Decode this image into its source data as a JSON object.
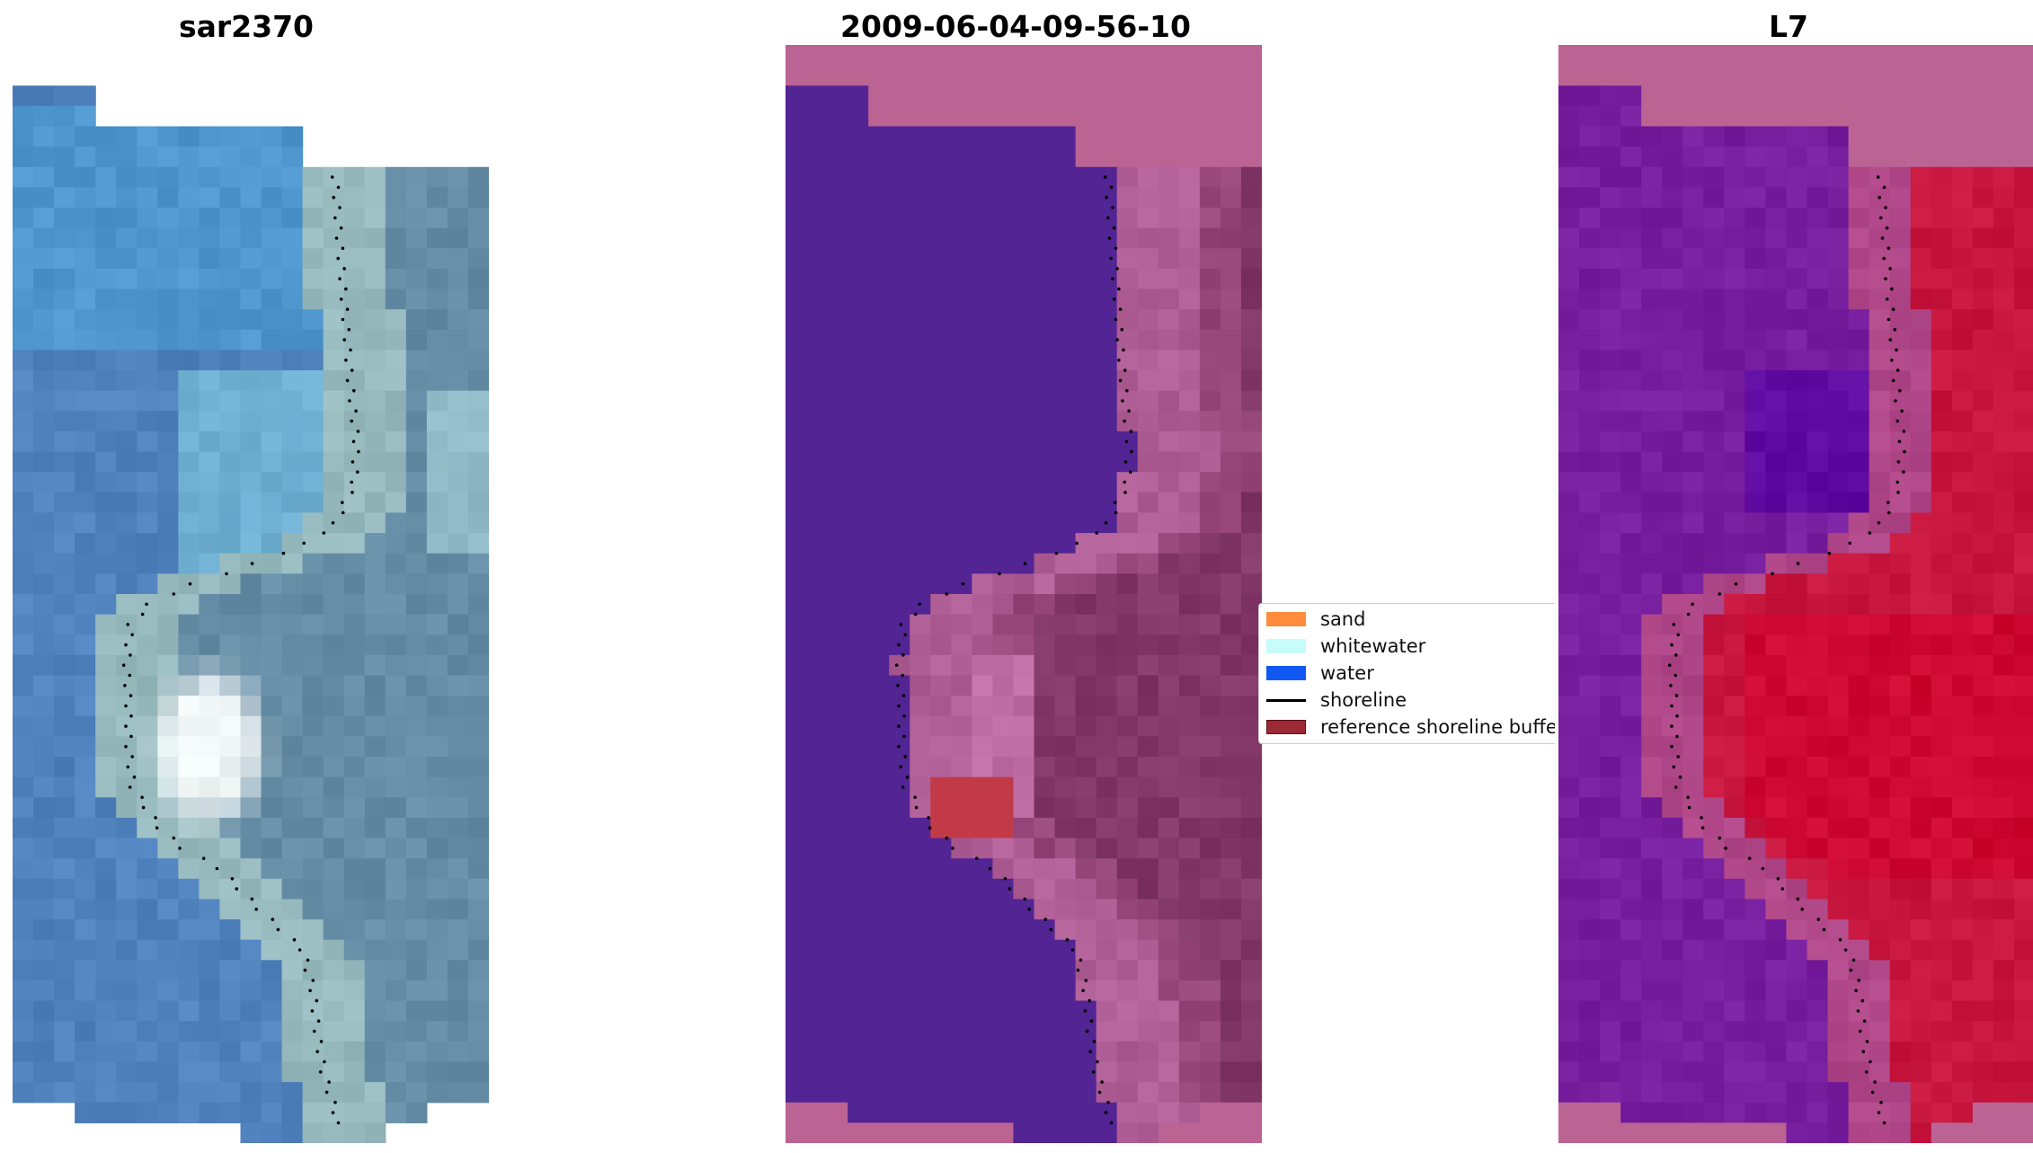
{
  "titles": {
    "left": "sar2370",
    "middle": "2009-06-04-09-56-10",
    "right": "L7"
  },
  "panels": [
    {
      "name": "rgb",
      "style": "rgb"
    },
    {
      "name": "classification",
      "style": "class"
    },
    {
      "name": "mndwi",
      "style": "index"
    }
  ],
  "legend": {
    "items": [
      {
        "label": "sand",
        "color": "#ff8c3c",
        "kind": "patch"
      },
      {
        "label": "whitewater",
        "color": "#c8fcfa",
        "kind": "patch"
      },
      {
        "label": "water",
        "color": "#1158f2",
        "kind": "patch"
      },
      {
        "label": "shoreline",
        "color": "#000000",
        "kind": "line"
      },
      {
        "label": "reference shoreline buffer",
        "color": "#9b2a35",
        "kind": "patch"
      }
    ]
  },
  "colors": {
    "background": "#ffffff",
    "nodata_pink": "#bb6494",
    "class_water": "#532494",
    "index_water": "#73199c",
    "index_land": "#c3123c",
    "buffer_red": "#c23a48"
  }
}
